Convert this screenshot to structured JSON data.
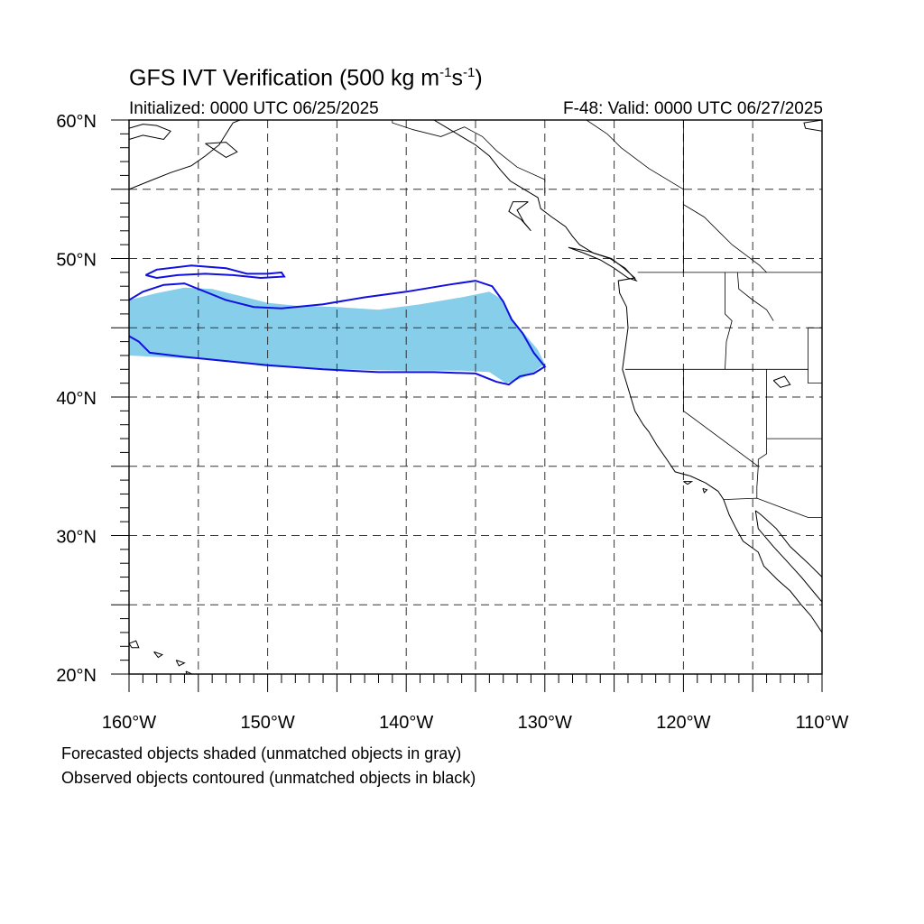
{
  "title": {
    "prefix": "GFS IVT Verification (500 kg m",
    "exp1": "-1",
    "mid": "s",
    "exp2": "-1",
    "suffix": ")"
  },
  "initialized": "Initialized: 0000 UTC 06/25/2025",
  "valid": "F-48: Valid: 0000 UTC 06/27/2025",
  "notes": {
    "forecast": "Forecasted objects shaded (unmatched objects in gray)",
    "observed": "Observed objects contoured (unmatched objects in black)"
  },
  "map": {
    "lon_range": [
      -160,
      -110
    ],
    "lat_range": [
      20,
      60
    ],
    "lon_labels": [
      "160°W",
      "150°W",
      "140°W",
      "130°W",
      "120°W",
      "110°W"
    ],
    "lat_labels": [
      "20°N",
      "30°N",
      "40°N",
      "50°N",
      "60°N"
    ],
    "grid_step_deg": 5,
    "colors": {
      "forecast_fill": "#87ceeb",
      "observed_contour": "#1010e0",
      "coastline": "#000000",
      "grid": "#333333"
    },
    "forecast_object": [
      [
        -160,
        47
      ],
      [
        -158,
        47.5
      ],
      [
        -156,
        47.9
      ],
      [
        -154,
        47.8
      ],
      [
        -152,
        47.3
      ],
      [
        -150,
        46.8
      ],
      [
        -148,
        46.6
      ],
      [
        -145,
        46.5
      ],
      [
        -142,
        46.3
      ],
      [
        -139,
        46.7
      ],
      [
        -136,
        47.2
      ],
      [
        -134,
        47.6
      ],
      [
        -133,
        47.0
      ],
      [
        -132.3,
        45.6
      ],
      [
        -131.5,
        44.6
      ],
      [
        -130.5,
        43.4
      ],
      [
        -130.0,
        42.4
      ],
      [
        -130.8,
        41.8
      ],
      [
        -131.8,
        41.3
      ],
      [
        -132.8,
        41.0
      ],
      [
        -134,
        41.8
      ],
      [
        -136,
        41.9
      ],
      [
        -140,
        41.9
      ],
      [
        -145,
        42.0
      ],
      [
        -150,
        42.2
      ],
      [
        -153,
        42.6
      ],
      [
        -156,
        42.8
      ],
      [
        -160,
        43.0
      ]
    ],
    "observed_contour_1": [
      [
        -160,
        47.0
      ],
      [
        -159,
        47.6
      ],
      [
        -157.5,
        48.1
      ],
      [
        -156,
        48.2
      ],
      [
        -154.5,
        47.6
      ],
      [
        -153,
        47.0
      ],
      [
        -151,
        46.5
      ],
      [
        -149,
        46.4
      ],
      [
        -146,
        46.7
      ],
      [
        -143,
        47.2
      ],
      [
        -140,
        47.6
      ],
      [
        -137,
        48.1
      ],
      [
        -135,
        48.4
      ],
      [
        -133.8,
        48.0
      ],
      [
        -133.0,
        46.9
      ],
      [
        -132.4,
        45.6
      ],
      [
        -131.6,
        44.6
      ],
      [
        -130.8,
        43.2
      ],
      [
        -130.0,
        42.2
      ],
      [
        -130.8,
        41.7
      ],
      [
        -131.8,
        41.5
      ],
      [
        -132.6,
        40.9
      ],
      [
        -133.5,
        41.1
      ],
      [
        -135,
        41.7
      ],
      [
        -138,
        41.8
      ],
      [
        -142,
        41.8
      ],
      [
        -146,
        42.0
      ],
      [
        -150,
        42.3
      ],
      [
        -153,
        42.6
      ],
      [
        -156,
        42.9
      ],
      [
        -158.5,
        43.2
      ],
      [
        -159.3,
        44.0
      ],
      [
        -160,
        44.4
      ]
    ],
    "observed_contour_2": [
      [
        -158.8,
        48.8
      ],
      [
        -158.0,
        49.2
      ],
      [
        -155.5,
        49.5
      ],
      [
        -153.0,
        49.3
      ],
      [
        -151.5,
        48.9
      ],
      [
        -150.0,
        48.9
      ],
      [
        -149.0,
        49.0
      ],
      [
        -148.8,
        48.7
      ],
      [
        -150.5,
        48.6
      ],
      [
        -152.5,
        48.8
      ],
      [
        -154.5,
        48.9
      ],
      [
        -156.5,
        48.8
      ],
      [
        -158.0,
        48.6
      ],
      [
        -158.8,
        48.8
      ]
    ],
    "coastlines": [
      [
        [
          -160,
          55.0
        ],
        [
          -158.5,
          55.6
        ],
        [
          -157,
          56.2
        ],
        [
          -155.5,
          56.7
        ],
        [
          -154.5,
          57.4
        ],
        [
          -153.5,
          58.2
        ],
        [
          -153,
          59.0
        ],
        [
          -152.5,
          59.8
        ],
        [
          -152,
          60
        ]
      ],
      [
        [
          -160,
          58.6
        ],
        [
          -159,
          58.9
        ],
        [
          -158.5,
          58.8
        ],
        [
          -157.5,
          58.6
        ],
        [
          -157,
          59.2
        ],
        [
          -158,
          59.6
        ],
        [
          -159,
          59.7
        ],
        [
          -160,
          59.4
        ]
      ],
      [
        [
          -154.5,
          58.3
        ],
        [
          -153.0,
          57.3
        ],
        [
          -152.2,
          57.7
        ],
        [
          -153.0,
          58.4
        ],
        [
          -154.5,
          58.3
        ]
      ],
      [
        [
          -138,
          60
        ],
        [
          -137,
          59.4
        ],
        [
          -136,
          58.8
        ],
        [
          -135,
          58.2
        ],
        [
          -134,
          57.4
        ],
        [
          -133.2,
          56.4
        ],
        [
          -132.5,
          55.6
        ],
        [
          -131.5,
          55.0
        ],
        [
          -130.5,
          54.4
        ],
        [
          -130.3,
          53.6
        ],
        [
          -129.5,
          53.0
        ],
        [
          -128.5,
          52.3
        ],
        [
          -128.0,
          51.6
        ],
        [
          -127.5,
          51.0
        ],
        [
          -126.5,
          50.4
        ],
        [
          -125.2,
          50.0
        ],
        [
          -124.3,
          49.3
        ],
        [
          -123.5,
          48.6
        ],
        [
          -124.7,
          48.4
        ],
        [
          -124.6,
          47.5
        ],
        [
          -124.1,
          46.5
        ],
        [
          -124.0,
          45.0
        ],
        [
          -124.2,
          43.5
        ],
        [
          -124.4,
          42.0
        ],
        [
          -124.1,
          41.0
        ],
        [
          -123.8,
          40.0
        ],
        [
          -123.5,
          39.0
        ],
        [
          -122.9,
          38.0
        ],
        [
          -122.5,
          37.5
        ],
        [
          -121.9,
          36.5
        ],
        [
          -121.2,
          35.5
        ],
        [
          -120.6,
          34.6
        ],
        [
          -119.5,
          34.3
        ],
        [
          -118.4,
          33.8
        ],
        [
          -117.5,
          33.2
        ],
        [
          -117.1,
          32.6
        ],
        [
          -116.7,
          31.5
        ],
        [
          -116.2,
          30.5
        ],
        [
          -115.7,
          29.6
        ],
        [
          -114.6,
          28.8
        ],
        [
          -114.2,
          27.8
        ],
        [
          -113.2,
          26.8
        ],
        [
          -112.3,
          26.0
        ],
        [
          -111.5,
          25.0
        ],
        [
          -110.8,
          24.2
        ],
        [
          -110.0,
          23.0
        ]
      ],
      [
        [
          -131.2,
          54.1
        ],
        [
          -132.0,
          53.5
        ],
        [
          -131.5,
          52.6
        ],
        [
          -131.0,
          52.0
        ],
        [
          -131.7,
          52.8
        ],
        [
          -132.6,
          53.4
        ],
        [
          -132.3,
          54.1
        ],
        [
          -131.2,
          54.1
        ]
      ],
      [
        [
          -128.3,
          50.8
        ],
        [
          -127.2,
          50.4
        ],
        [
          -126.0,
          49.9
        ],
        [
          -125.0,
          49.3
        ],
        [
          -124.0,
          48.6
        ],
        [
          -123.4,
          48.4
        ],
        [
          -124.2,
          49.3
        ],
        [
          -125.3,
          50.0
        ],
        [
          -126.8,
          50.5
        ],
        [
          -128.3,
          50.8
        ]
      ],
      [
        [
          -114.8,
          31.8
        ],
        [
          -114.6,
          30.5
        ],
        [
          -113.5,
          29.2
        ],
        [
          -112.4,
          28.0
        ],
        [
          -111.5,
          27.0
        ],
        [
          -110.5,
          25.8
        ],
        [
          -110.0,
          25.2
        ]
      ],
      [
        [
          -110.0,
          27.0
        ],
        [
          -111.0,
          28.0
        ],
        [
          -112.3,
          29.2
        ],
        [
          -113.3,
          30.5
        ],
        [
          -114.4,
          31.5
        ],
        [
          -114.8,
          31.8
        ]
      ],
      [
        [
          -110.0,
          59.2
        ],
        [
          -111.2,
          59.4
        ],
        [
          -111.3,
          59.8
        ],
        [
          -110.0,
          60.0
        ]
      ],
      [
        [
          -160,
          22.2
        ],
        [
          -159.5,
          22.4
        ],
        [
          -159.3,
          21.9
        ],
        [
          -159.8,
          21.9
        ],
        [
          -160,
          22.2
        ]
      ],
      [
        [
          -158.2,
          21.6
        ],
        [
          -157.6,
          21.4
        ],
        [
          -157.9,
          21.2
        ],
        [
          -158.2,
          21.6
        ]
      ],
      [
        [
          -156.6,
          21.0
        ],
        [
          -156.0,
          20.8
        ],
        [
          -156.4,
          20.6
        ],
        [
          -156.6,
          21.0
        ]
      ],
      [
        [
          -155.9,
          20.2
        ],
        [
          -155.0,
          19.8
        ],
        [
          -155.5,
          19.2
        ],
        [
          -155.9,
          20.2
        ]
      ],
      [
        [
          -113.5,
          41.2
        ],
        [
          -112.7,
          41.5
        ],
        [
          -112.3,
          40.9
        ],
        [
          -113.0,
          40.7
        ],
        [
          -113.5,
          41.2
        ]
      ],
      [
        [
          -120.0,
          33.9
        ],
        [
          -119.4,
          33.9
        ],
        [
          -119.7,
          33.7
        ],
        [
          -120.0,
          33.9
        ]
      ],
      [
        [
          -118.6,
          33.4
        ],
        [
          -118.3,
          33.3
        ],
        [
          -118.5,
          33.1
        ],
        [
          -118.6,
          33.4
        ]
      ]
    ],
    "borders": [
      [
        [
          -141.0,
          60.0
        ],
        [
          -141.0,
          59.8
        ],
        [
          -139.5,
          59.3
        ],
        [
          -137.5,
          58.8
        ],
        [
          -135.8,
          59.5
        ],
        [
          -134.5,
          58.8
        ],
        [
          -133.5,
          57.8
        ],
        [
          -132.0,
          56.6
        ],
        [
          -130.0,
          55.7
        ],
        [
          -130.0,
          54.7
        ]
      ],
      [
        [
          -123.3,
          49.0
        ],
        [
          -110.0,
          49.0
        ]
      ],
      [
        [
          -117.0,
          49.0
        ],
        [
          -117.0,
          46.0
        ],
        [
          -116.5,
          45.5
        ],
        [
          -116.9,
          44.0
        ],
        [
          -117.0,
          42.0
        ]
      ],
      [
        [
          -124.2,
          42.0
        ],
        [
          -111.0,
          42.0
        ]
      ],
      [
        [
          -111.0,
          45.0
        ],
        [
          -110.0,
          45.0
        ]
      ],
      [
        [
          -111.0,
          45.0
        ],
        [
          -111.0,
          41.0
        ],
        [
          -110.0,
          41.0
        ]
      ],
      [
        [
          -120.0,
          42.0
        ],
        [
          -120.0,
          39.0
        ],
        [
          -114.6,
          35.0
        ]
      ],
      [
        [
          -114.0,
          42.0
        ],
        [
          -114.0,
          35.9
        ],
        [
          -114.6,
          35.5
        ],
        [
          -114.6,
          35.0
        ]
      ],
      [
        [
          -114.0,
          37.0
        ],
        [
          -110.0,
          37.0
        ]
      ],
      [
        [
          -114.6,
          35.0
        ],
        [
          -114.7,
          33.5
        ],
        [
          -114.7,
          32.7
        ]
      ],
      [
        [
          -117.1,
          32.6
        ],
        [
          -114.7,
          32.7
        ],
        [
          -111.0,
          31.3
        ],
        [
          -110.0,
          31.3
        ]
      ],
      [
        [
          -116.1,
          49.0
        ],
        [
          -116.0,
          47.8
        ],
        [
          -115.0,
          47.0
        ],
        [
          -114.0,
          46.3
        ],
        [
          -113.5,
          45.5
        ]
      ],
      [
        [
          -120.0,
          60.0
        ],
        [
          -120.0,
          49.0
        ]
      ],
      [
        [
          -127.0,
          60.0
        ],
        [
          -125.5,
          59.0
        ],
        [
          -124.5,
          58.0
        ],
        [
          -122.5,
          56.5
        ],
        [
          -120.0,
          55.0
        ]
      ],
      [
        [
          -120.0,
          53.9
        ],
        [
          -118.5,
          53.0
        ],
        [
          -117.5,
          52.0
        ],
        [
          -116.5,
          51.0
        ],
        [
          -114.5,
          49.5
        ],
        [
          -114.0,
          49.0
        ]
      ]
    ]
  }
}
